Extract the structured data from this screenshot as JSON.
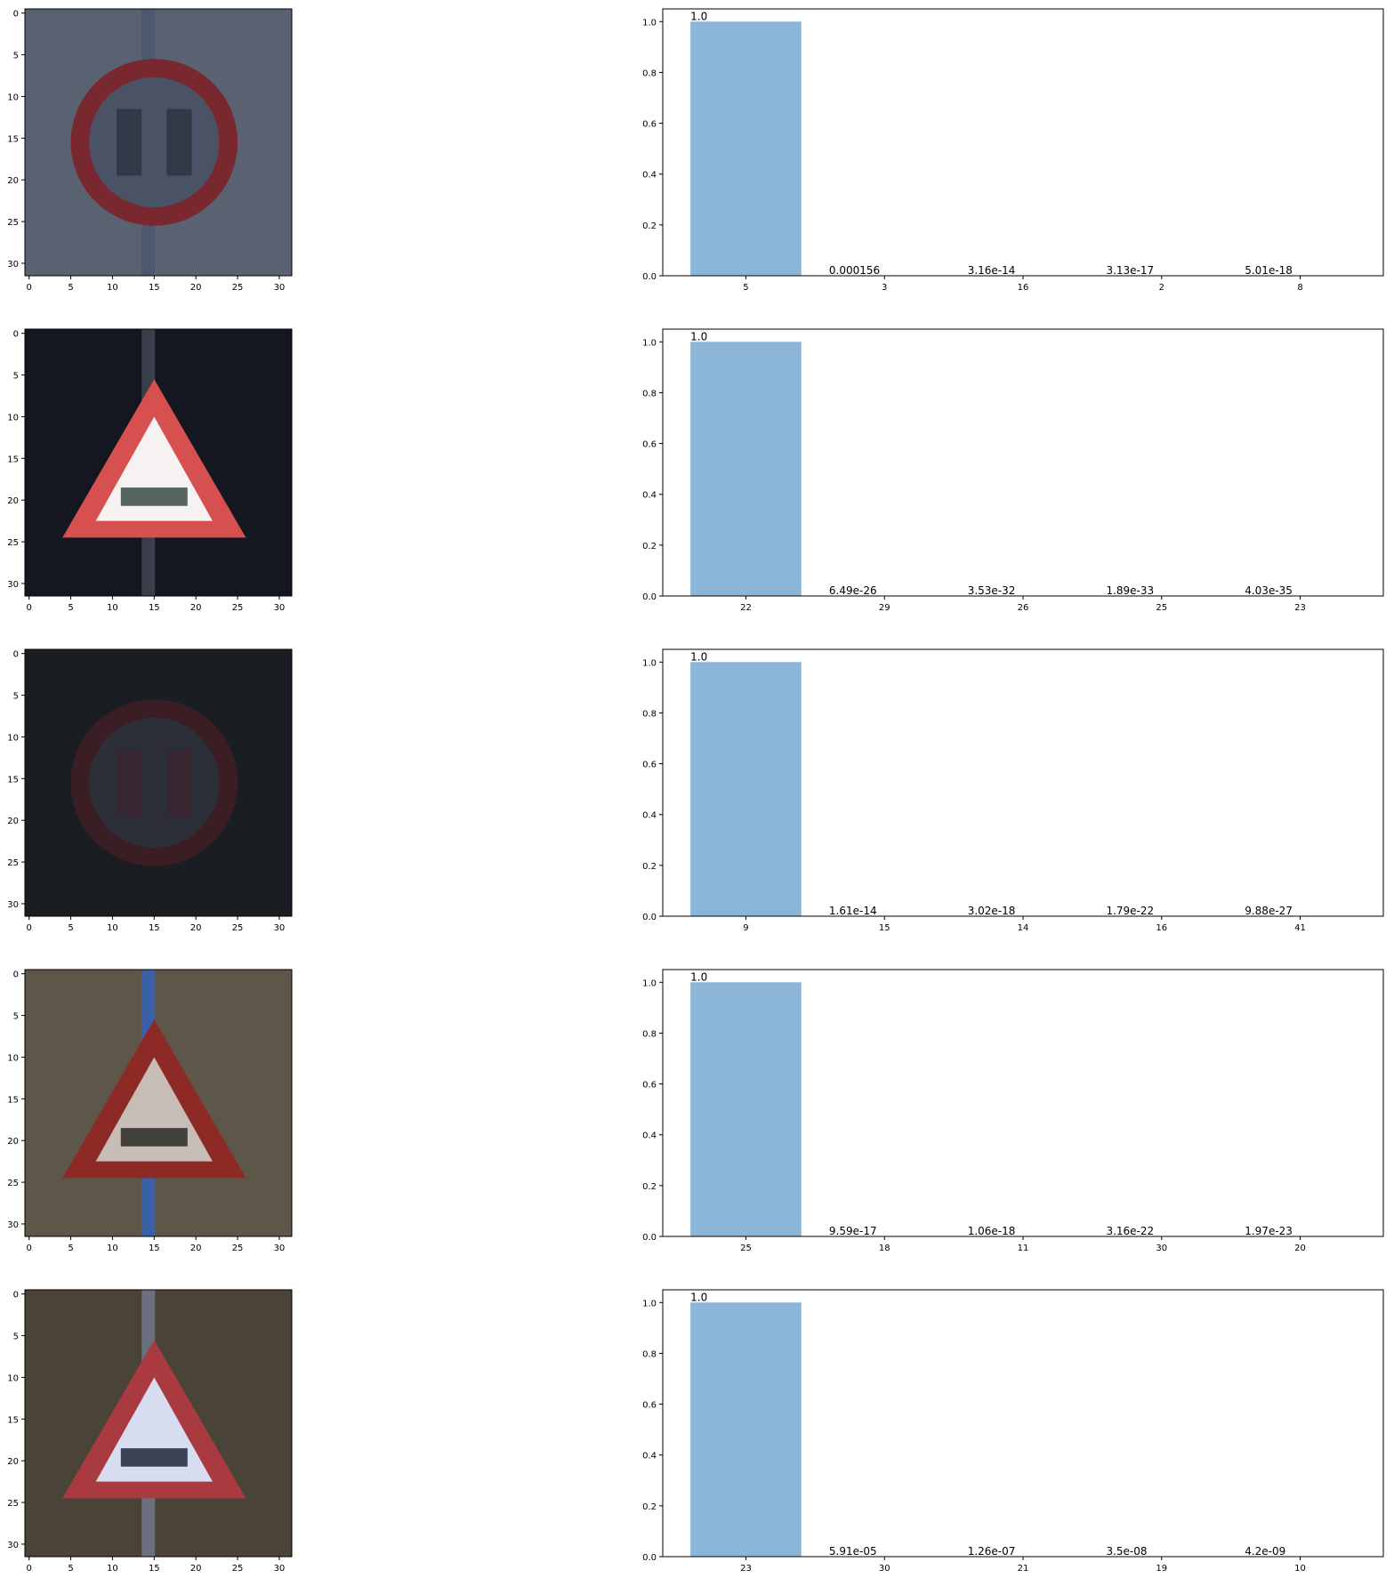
{
  "chart_data": [
    {
      "type": "image",
      "x_ticks": [
        "0",
        "5",
        "10",
        "15",
        "20",
        "25",
        "30"
      ],
      "y_ticks": [
        "0",
        "5",
        "10",
        "15",
        "20",
        "25",
        "30"
      ],
      "sign_shape": "circle-prohibitory",
      "colors": {
        "bg": "#5a6272",
        "border": "#7a2830",
        "inner": "#4a5266",
        "marks": "#2a3340",
        "pole": "#4a5870"
      }
    },
    {
      "type": "bar",
      "categories": [
        "5",
        "3",
        "16",
        "2",
        "8"
      ],
      "values": [
        1.0,
        0.000156,
        3.16e-14,
        3.13e-17,
        5.01e-18
      ],
      "data_labels": [
        "1.0",
        "0.000156",
        "3.16e-14",
        "3.13e-17",
        "5.01e-18"
      ],
      "y_ticks": [
        "0.0",
        "0.2",
        "0.4",
        "0.6",
        "0.8",
        "1.0"
      ],
      "ylim": [
        0,
        1.05
      ],
      "bar_color": "#8cb6d8"
    },
    {
      "type": "image",
      "x_ticks": [
        "0",
        "5",
        "10",
        "15",
        "20",
        "25",
        "30"
      ],
      "y_ticks": [
        "0",
        "5",
        "10",
        "15",
        "20",
        "25",
        "30"
      ],
      "sign_shape": "triangle-warning",
      "colors": {
        "bg": "#141620",
        "border": "#d5504e",
        "inner": "#f7f2f2",
        "marks": "#3a4a48",
        "pole": "#3a3e4a"
      }
    },
    {
      "type": "bar",
      "categories": [
        "22",
        "29",
        "26",
        "25",
        "23"
      ],
      "values": [
        1.0,
        6.49e-26,
        3.53e-32,
        1.89e-33,
        4.03e-35
      ],
      "data_labels": [
        "1.0",
        "6.49e-26",
        "3.53e-32",
        "1.89e-33",
        "4.03e-35"
      ],
      "y_ticks": [
        "0.0",
        "0.2",
        "0.4",
        "0.6",
        "0.8",
        "1.0"
      ],
      "ylim": [
        0,
        1.05
      ],
      "bar_color": "#8cb6d8"
    },
    {
      "type": "image",
      "x_ticks": [
        "0",
        "5",
        "10",
        "15",
        "20",
        "25",
        "30"
      ],
      "y_ticks": [
        "0",
        "5",
        "10",
        "15",
        "20",
        "25",
        "30"
      ],
      "sign_shape": "circle-prohibitory",
      "colors": {
        "bg": "#1a1e22",
        "border": "#3a1e24",
        "inner": "#2c2e38",
        "marks": "#3c2630",
        "pole": "#1a1e22"
      }
    },
    {
      "type": "bar",
      "categories": [
        "9",
        "15",
        "14",
        "16",
        "41"
      ],
      "values": [
        1.0,
        1.61e-14,
        3.02e-18,
        1.79e-22,
        9.88e-27
      ],
      "data_labels": [
        "1.0",
        "1.61e-14",
        "3.02e-18",
        "1.79e-22",
        "9.88e-27"
      ],
      "y_ticks": [
        "0.0",
        "0.2",
        "0.4",
        "0.6",
        "0.8",
        "1.0"
      ],
      "ylim": [
        0,
        1.05
      ],
      "bar_color": "#8cb6d8"
    },
    {
      "type": "image",
      "x_ticks": [
        "0",
        "5",
        "10",
        "15",
        "20",
        "25",
        "30"
      ],
      "y_ticks": [
        "0",
        "5",
        "10",
        "15",
        "20",
        "25",
        "30"
      ],
      "sign_shape": "triangle-warning",
      "colors": {
        "bg": "#5e5648",
        "border": "#8e2a26",
        "inner": "#c8bcb6",
        "marks": "#2a2a26",
        "pole": "#3a60a8"
      }
    },
    {
      "type": "bar",
      "categories": [
        "25",
        "18",
        "11",
        "30",
        "20"
      ],
      "values": [
        1.0,
        9.59e-17,
        1.06e-18,
        3.16e-22,
        1.97e-23
      ],
      "data_labels": [
        "1.0",
        "9.59e-17",
        "1.06e-18",
        "3.16e-22",
        "1.97e-23"
      ],
      "y_ticks": [
        "0.0",
        "0.2",
        "0.4",
        "0.6",
        "0.8",
        "1.0"
      ],
      "ylim": [
        0,
        1.05
      ],
      "bar_color": "#8cb6d8"
    },
    {
      "type": "image",
      "x_ticks": [
        "0",
        "5",
        "10",
        "15",
        "20",
        "25",
        "30"
      ],
      "y_ticks": [
        "0",
        "5",
        "10",
        "15",
        "20",
        "25",
        "30"
      ],
      "sign_shape": "triangle-warning",
      "colors": {
        "bg": "#4a4438",
        "border": "#a83a40",
        "inner": "#d8dcf0",
        "marks": "#202838",
        "pole": "#6a7080"
      }
    },
    {
      "type": "bar",
      "categories": [
        "23",
        "30",
        "21",
        "19",
        "10"
      ],
      "values": [
        1.0,
        5.91e-05,
        1.26e-07,
        3.5e-08,
        4.2e-09
      ],
      "data_labels": [
        "1.0",
        "5.91e-05",
        "1.26e-07",
        "3.5e-08",
        "4.2e-09"
      ],
      "y_ticks": [
        "0.0",
        "0.2",
        "0.4",
        "0.6",
        "0.8",
        "1.0"
      ],
      "ylim": [
        0,
        1.05
      ],
      "bar_color": "#8cb6d8"
    }
  ]
}
